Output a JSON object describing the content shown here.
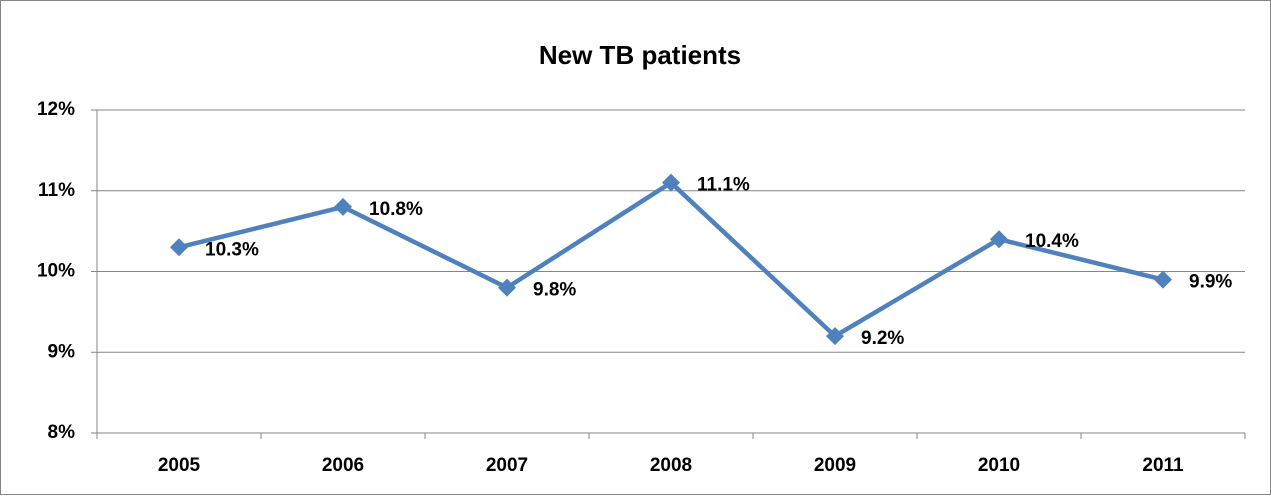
{
  "chart_data": {
    "type": "line",
    "title": "New TB patients",
    "categories": [
      "2005",
      "2006",
      "2007",
      "2008",
      "2009",
      "2010",
      "2011"
    ],
    "values": [
      10.3,
      10.8,
      9.8,
      11.1,
      9.2,
      10.4,
      9.9
    ],
    "value_labels": [
      "10.3%",
      "10.8%",
      "9.8%",
      "11.1%",
      "9.2%",
      "10.4%",
      "9.9%"
    ],
    "color": "#4f81bd",
    "ylim": [
      8,
      12
    ],
    "yticks": [
      {
        "value": 8,
        "label": "8%"
      },
      {
        "value": 9,
        "label": "9%"
      },
      {
        "value": 10,
        "label": "10%"
      },
      {
        "value": 11,
        "label": "11%"
      },
      {
        "value": 12,
        "label": "12%"
      }
    ],
    "grid": true
  }
}
